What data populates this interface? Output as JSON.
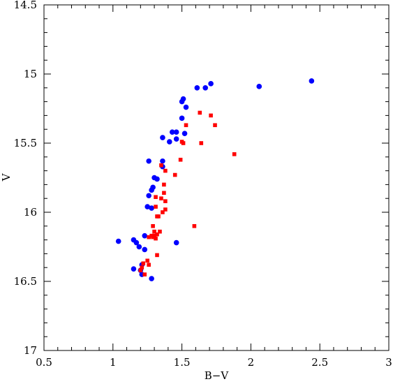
{
  "chart_data": {
    "type": "scatter",
    "title": "",
    "xlabel": "B−V",
    "ylabel": "V",
    "xlim": [
      0.5,
      3
    ],
    "ylim": [
      17,
      14.5
    ],
    "y_inverted": true,
    "grid": false,
    "x_ticks": [
      {
        "value": 0.5,
        "label": "0.5"
      },
      {
        "value": 1,
        "label": "1"
      },
      {
        "value": 1.5,
        "label": "1.5"
      },
      {
        "value": 2,
        "label": "2"
      },
      {
        "value": 2.5,
        "label": "2.5"
      },
      {
        "value": 3,
        "label": "3"
      }
    ],
    "y_ticks": [
      {
        "value": 14.5,
        "label": "14.5"
      },
      {
        "value": 15,
        "label": "15"
      },
      {
        "value": 15.5,
        "label": "15.5"
      },
      {
        "value": 16,
        "label": "16"
      },
      {
        "value": 16.5,
        "label": "16.5"
      },
      {
        "value": 17,
        "label": "17"
      }
    ],
    "series": [
      {
        "marker": "circle",
        "color": "#0000ff",
        "points": [
          [
            2.44,
            15.05
          ],
          [
            2.06,
            15.09
          ],
          [
            1.71,
            15.07
          ],
          [
            1.67,
            15.1
          ],
          [
            1.61,
            15.1
          ],
          [
            1.51,
            15.18
          ],
          [
            1.5,
            15.2
          ],
          [
            1.53,
            15.24
          ],
          [
            1.5,
            15.32
          ],
          [
            1.52,
            15.43
          ],
          [
            1.46,
            15.42
          ],
          [
            1.43,
            15.42
          ],
          [
            1.36,
            15.46
          ],
          [
            1.46,
            15.47
          ],
          [
            1.41,
            15.49
          ],
          [
            1.26,
            15.63
          ],
          [
            1.36,
            15.63
          ],
          [
            1.36,
            15.67
          ],
          [
            1.3,
            15.75
          ],
          [
            1.32,
            15.76
          ],
          [
            1.29,
            15.82
          ],
          [
            1.28,
            15.84
          ],
          [
            1.26,
            15.88
          ],
          [
            1.25,
            15.96
          ],
          [
            1.28,
            15.97
          ],
          [
            1.23,
            16.17
          ],
          [
            1.04,
            16.21
          ],
          [
            1.15,
            16.2
          ],
          [
            1.17,
            16.22
          ],
          [
            1.19,
            16.25
          ],
          [
            1.23,
            16.27
          ],
          [
            1.46,
            16.22
          ],
          [
            1.21,
            16.38
          ],
          [
            1.15,
            16.41
          ],
          [
            1.2,
            16.42
          ],
          [
            1.21,
            16.45
          ],
          [
            1.28,
            16.48
          ]
        ]
      },
      {
        "marker": "square",
        "color": "#ff0000",
        "points": [
          [
            1.63,
            15.28
          ],
          [
            1.71,
            15.3
          ],
          [
            1.74,
            15.37
          ],
          [
            1.53,
            15.37
          ],
          [
            1.64,
            15.5
          ],
          [
            1.5,
            15.49
          ],
          [
            1.51,
            15.5
          ],
          [
            1.88,
            15.58
          ],
          [
            1.49,
            15.62
          ],
          [
            1.35,
            15.66
          ],
          [
            1.38,
            15.7
          ],
          [
            1.45,
            15.73
          ],
          [
            1.37,
            15.8
          ],
          [
            1.37,
            15.86
          ],
          [
            1.31,
            15.89
          ],
          [
            1.35,
            15.9
          ],
          [
            1.38,
            15.92
          ],
          [
            1.31,
            15.96
          ],
          [
            1.38,
            15.98
          ],
          [
            1.36,
            16.0
          ],
          [
            1.33,
            16.03
          ],
          [
            1.32,
            16.03
          ],
          [
            1.59,
            16.1
          ],
          [
            1.29,
            16.1
          ],
          [
            1.3,
            16.14
          ],
          [
            1.34,
            16.14
          ],
          [
            1.32,
            16.16
          ],
          [
            1.28,
            16.17
          ],
          [
            1.3,
            16.17
          ],
          [
            1.29,
            16.18
          ],
          [
            1.26,
            16.18
          ],
          [
            1.31,
            16.19
          ],
          [
            1.32,
            16.31
          ],
          [
            1.25,
            16.35
          ],
          [
            1.26,
            16.38
          ],
          [
            1.21,
            16.4
          ],
          [
            1.22,
            16.37
          ],
          [
            1.2,
            16.42
          ],
          [
            1.23,
            16.45
          ]
        ]
      }
    ]
  }
}
